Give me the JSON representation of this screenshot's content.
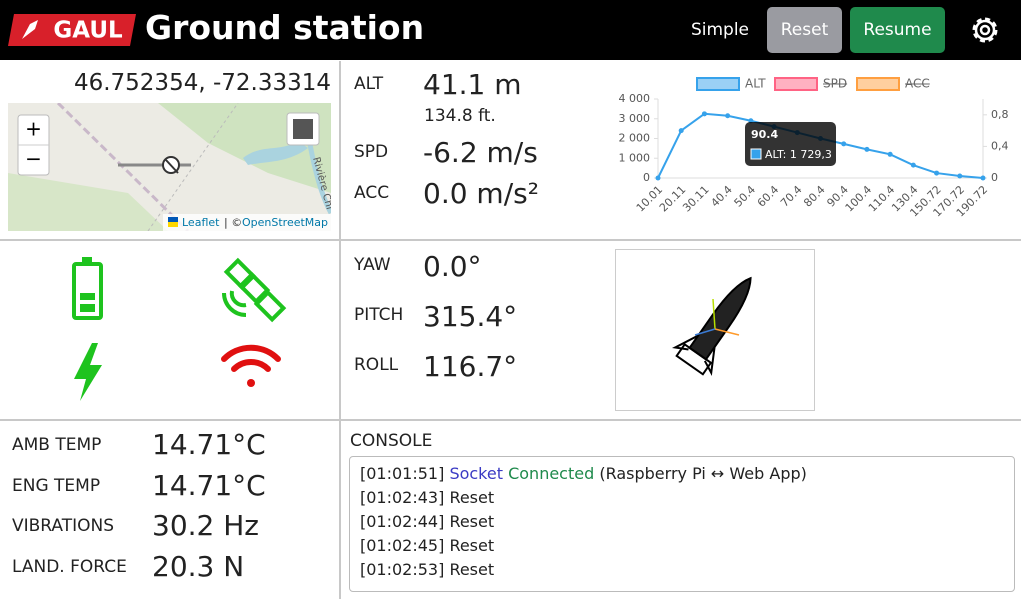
{
  "header": {
    "logo": "GAUL",
    "title": "Ground station",
    "buttons": [
      "Simple",
      "Reset",
      "Resume"
    ]
  },
  "map": {
    "coordinates": "46.752354, -72.33314",
    "zoom_in": "+",
    "zoom_out": "−",
    "river": "Rivière Chi",
    "attribution_leaflet": "Leaflet",
    "attribution_sep": "| ©",
    "attribution_osm": "OpenStreetMap"
  },
  "flight": [
    {
      "label": "ALT",
      "value": "41.1 m",
      "sub": "134.8 ft."
    },
    {
      "label": "SPD",
      "value": "-6.2 m/s"
    },
    {
      "label": "ACC",
      "value": "0.0 m/s²"
    }
  ],
  "attitude": [
    {
      "label": "YAW",
      "value": "0.0°"
    },
    {
      "label": "PITCH",
      "value": "315.4°"
    },
    {
      "label": "ROLL",
      "value": "116.7°"
    }
  ],
  "sensors": [
    {
      "label": "AMB TEMP",
      "value": "14.71°C"
    },
    {
      "label": "ENG TEMP",
      "value": "14.71°C"
    },
    {
      "label": "VIBRATIONS",
      "value": "30.2 Hz"
    },
    {
      "label": "LAND. FORCE",
      "value": "20.3 N"
    }
  ],
  "console": {
    "title": "CONSOLE",
    "first": {
      "time": "[01:01:51]",
      "socket": "Socket",
      "connected": "Connected",
      "rest": "(Raspberry Pi ↔ Web App)"
    },
    "lines": [
      {
        "time": "[01:02:43]",
        "text": "Reset"
      },
      {
        "time": "[01:02:44]",
        "text": "Reset"
      },
      {
        "time": "[01:02:45]",
        "text": "Reset"
      },
      {
        "time": "[01:02:53]",
        "text": "Reset"
      }
    ]
  },
  "chart_data": {
    "type": "line",
    "categories": [
      "10.01",
      "20.11",
      "30.11",
      "40.4",
      "50.4",
      "60.4",
      "70.4",
      "80.4",
      "90.4",
      "100.4",
      "110.4",
      "130.4",
      "150.72",
      "170.72",
      "190.72"
    ],
    "series": [
      {
        "name": "ALT",
        "color": "#36a2eb",
        "values": [
          0,
          2400,
          3250,
          3150,
          2900,
          2600,
          2300,
          2000,
          1729.3,
          1450,
          1200,
          650,
          250,
          100,
          0
        ]
      },
      {
        "name": "SPD",
        "color": "#ff6384",
        "hidden": true
      },
      {
        "name": "ACC",
        "color": "#ff9f40",
        "hidden": true
      }
    ],
    "ylim": [
      0,
      4000
    ],
    "yticks": [
      0,
      {
        "value": 1000,
        "label": "1 000"
      },
      {
        "value": 2000,
        "label": "2 000"
      },
      {
        "value": 3000,
        "label": "3 000"
      },
      {
        "value": 4000,
        "label": "4 000"
      }
    ],
    "y2lim": [
      0,
      1
    ],
    "y2ticks": [
      0,
      {
        "value": 0.4,
        "label": "0,4"
      },
      {
        "value": 0.8,
        "label": "0,8"
      }
    ],
    "grid": false,
    "legend": "top",
    "tooltip": {
      "title": "90.4",
      "text": "ALT: 1 729,3"
    }
  }
}
